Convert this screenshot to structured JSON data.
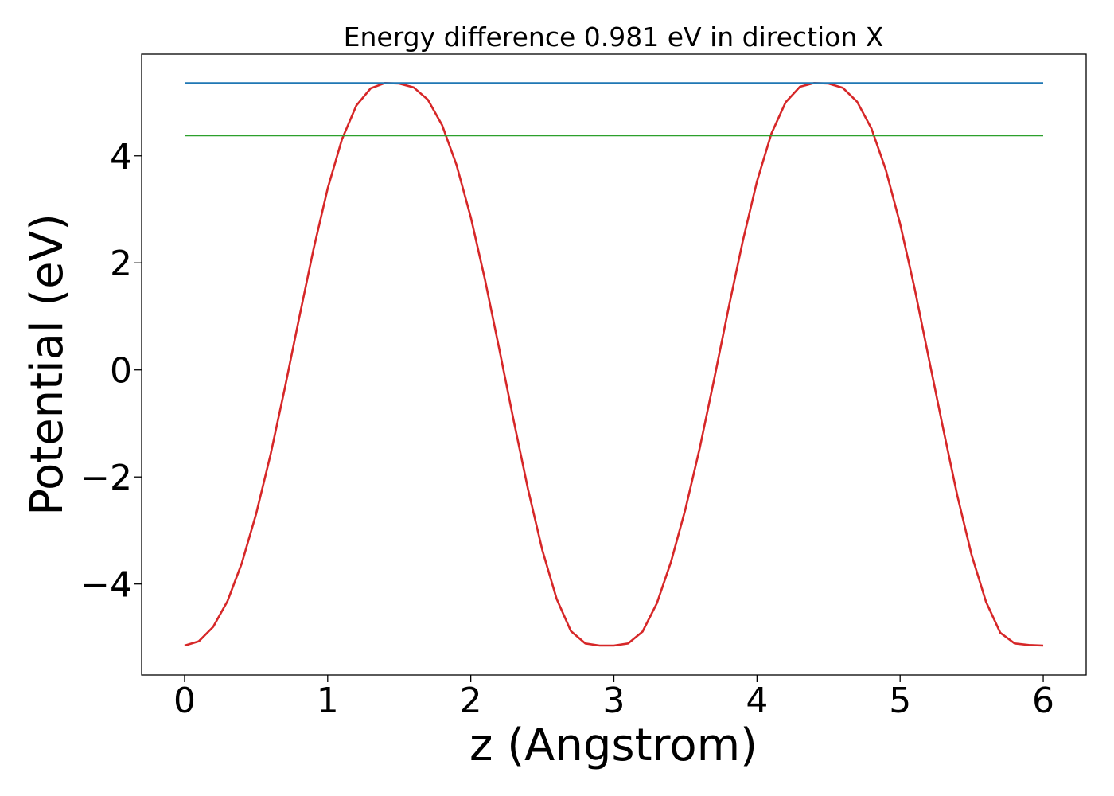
{
  "chart_data": {
    "type": "line",
    "title": "Energy difference 0.981 eV in direction X",
    "xlabel": "z (Angstrom)",
    "ylabel": "Potential (eV)",
    "xlim": [
      -0.3,
      6.3
    ],
    "ylim": [
      -5.7,
      5.9
    ],
    "grid": false,
    "x_ticks": [
      0,
      1,
      2,
      3,
      4,
      5,
      6
    ],
    "x_tick_labels": [
      "0",
      "1",
      "2",
      "3",
      "4",
      "5",
      "6"
    ],
    "y_ticks": [
      -4,
      -2,
      0,
      2,
      4
    ],
    "y_tick_labels": [
      "−4",
      "−2",
      "0",
      "2",
      "4"
    ],
    "series": [
      {
        "color": "#d62728",
        "style": "curve",
        "x": [
          0.0,
          0.1,
          0.2,
          0.3,
          0.4,
          0.5,
          0.6,
          0.7,
          0.8,
          0.9,
          1.0,
          1.1,
          1.2,
          1.3,
          1.4,
          1.5,
          1.6,
          1.7,
          1.8,
          1.9,
          2.0,
          2.1,
          2.2,
          2.3,
          2.4,
          2.5,
          2.6,
          2.7,
          2.8,
          2.9,
          3.0,
          3.1,
          3.2,
          3.3,
          3.4,
          3.5,
          3.6,
          3.7,
          3.8,
          3.9,
          4.0,
          4.1,
          4.2,
          4.3,
          4.4,
          4.5,
          4.6,
          4.7,
          4.8,
          4.9,
          5.0,
          5.1,
          5.2,
          5.3,
          5.4,
          5.5,
          5.6,
          5.7,
          5.8,
          5.9,
          6.0
        ],
        "y": [
          -5.15,
          -5.07,
          -4.8,
          -4.32,
          -3.61,
          -2.69,
          -1.59,
          -0.35,
          0.96,
          2.24,
          3.39,
          4.31,
          4.94,
          5.26,
          5.36,
          5.35,
          5.28,
          5.05,
          4.57,
          3.83,
          2.85,
          1.68,
          0.38,
          -0.95,
          -2.23,
          -3.37,
          -4.28,
          -4.88,
          -5.11,
          -5.15,
          -5.15,
          -5.11,
          -4.89,
          -4.36,
          -3.58,
          -2.6,
          -1.46,
          -0.18,
          1.14,
          2.4,
          3.52,
          4.41,
          5.0,
          5.29,
          5.36,
          5.35,
          5.27,
          5.01,
          4.51,
          3.74,
          2.73,
          1.54,
          0.22,
          -1.09,
          -2.35,
          -3.46,
          -4.33,
          -4.91,
          -5.11,
          -5.14,
          -5.15
        ]
      },
      {
        "color": "#1f77b4",
        "style": "horizontal",
        "x": [
          0,
          6
        ],
        "y": [
          5.36,
          5.36
        ]
      },
      {
        "color": "#2ca02c",
        "style": "horizontal",
        "x": [
          0,
          6
        ],
        "y": [
          4.38,
          4.38
        ]
      }
    ]
  }
}
